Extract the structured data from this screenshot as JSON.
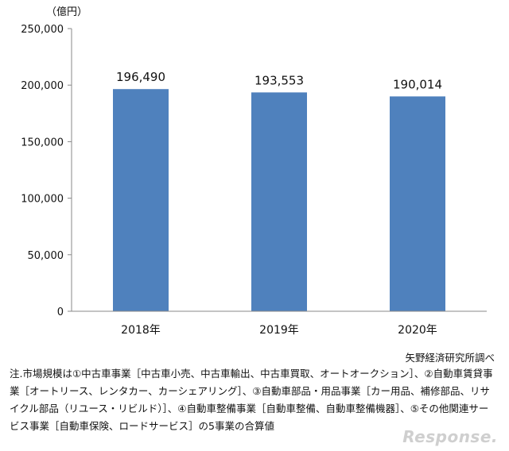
{
  "chart_data": {
    "type": "bar",
    "unit_label": "（億円）",
    "categories": [
      "2018年",
      "2019年",
      "2020年"
    ],
    "values": [
      196490,
      193553,
      190014
    ],
    "value_labels": [
      "196,490",
      "193,553",
      "190,014"
    ],
    "ylim": [
      0,
      250000
    ],
    "yticks": [
      "0",
      "50,000",
      "100,000",
      "150,000",
      "200,000",
      "250,000"
    ],
    "grid": false,
    "legend": "none",
    "bar_color": "#4f81bd"
  },
  "source": "矢野経済研究所調べ",
  "note": "注.市場規模は①中古車事業［中古車小売、中古車輸出、中古車買取、オートオークション］、②自動車賃貸事業［オートリース、レンタカー、カーシェアリング］、③自動車部品・用品事業［カー用品、補修部品、リサイクル部品（リユース・リビルド）］、④自動車整備事業［自動車整備、自動車整備機器］、⑤その他関連サービス事業［自動車保険、ロードサービス］の5事業の合算値",
  "logo_text": "Response."
}
